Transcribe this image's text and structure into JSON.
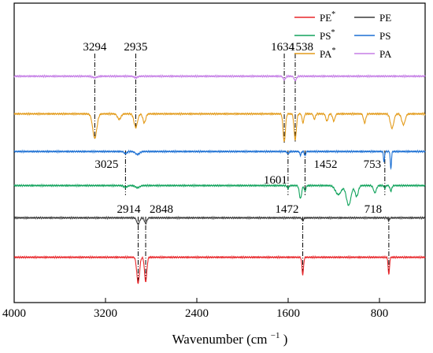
{
  "chart_data": {
    "type": "line",
    "xlabel": "Wavenumber",
    "xlabel_unit_base": "(cm",
    "xlabel_unit_exp": "−1",
    "xlabel_unit_close": ")",
    "xlim": [
      4000,
      400
    ],
    "x_ticks": [
      4000,
      3200,
      2400,
      1600,
      800
    ],
    "grid": false,
    "legend_position": "top-right",
    "series": [
      {
        "name": "PE",
        "star": true,
        "color": "#e8262a",
        "baseline": 1.0,
        "peaks": [
          [
            2914,
            0.72,
            12
          ],
          [
            2848,
            0.68,
            10
          ],
          [
            1472,
            0.48,
            7
          ],
          [
            718,
            0.48,
            6
          ]
        ]
      },
      {
        "name": "PE",
        "star": false,
        "color": "#3a3a3a",
        "baseline": 2.1,
        "peaks": [
          [
            2914,
            0.18,
            12
          ],
          [
            2848,
            0.16,
            10
          ],
          [
            1472,
            0.08,
            7
          ],
          [
            718,
            0.08,
            6
          ]
        ]
      },
      {
        "name": "PS",
        "star": true,
        "color": "#12a35d",
        "baseline": 3.0,
        "peaks": [
          [
            3025,
            0.05,
            15
          ],
          [
            2920,
            0.06,
            18
          ],
          [
            1601,
            0.08,
            8
          ],
          [
            1492,
            0.36,
            10
          ],
          [
            1452,
            0.15,
            8
          ],
          [
            1160,
            0.25,
            25
          ],
          [
            1070,
            0.55,
            20
          ],
          [
            1000,
            0.3,
            14
          ],
          [
            840,
            0.2,
            12
          ],
          [
            753,
            0.08,
            6
          ],
          [
            700,
            0.15,
            8
          ]
        ]
      },
      {
        "name": "PS",
        "star": false,
        "color": "#1b6fd3",
        "baseline": 3.95,
        "peaks": [
          [
            3025,
            0.06,
            12
          ],
          [
            2920,
            0.08,
            18
          ],
          [
            1601,
            0.06,
            8
          ],
          [
            1492,
            0.1,
            6
          ],
          [
            1452,
            0.12,
            6
          ],
          [
            760,
            0.28,
            5
          ],
          [
            700,
            0.48,
            5
          ]
        ]
      },
      {
        "name": "PA",
        "star": true,
        "color": "#e39b1a",
        "baseline": 5.0,
        "peaks": [
          [
            3294,
            0.68,
            18
          ],
          [
            3080,
            0.15,
            15
          ],
          [
            2935,
            0.38,
            15
          ],
          [
            2860,
            0.25,
            12
          ],
          [
            1634,
            0.78,
            10
          ],
          [
            1538,
            0.72,
            10
          ],
          [
            1470,
            0.25,
            8
          ],
          [
            1370,
            0.15,
            8
          ],
          [
            1260,
            0.2,
            10
          ],
          [
            1200,
            0.2,
            10
          ],
          [
            930,
            0.25,
            10
          ],
          [
            690,
            0.4,
            15
          ],
          [
            590,
            0.3,
            15
          ]
        ]
      },
      {
        "name": "PA",
        "star": false,
        "color": "#c57ee6",
        "baseline": 6.05,
        "peaks": [
          [
            3294,
            0.04,
            20
          ],
          [
            2935,
            0.04,
            15
          ],
          [
            1634,
            0.1,
            10
          ],
          [
            1538,
            0.12,
            10
          ]
        ]
      }
    ],
    "annotations": [
      {
        "text": "3294",
        "x": 3294,
        "row": "top"
      },
      {
        "text": "2935",
        "x": 2935,
        "row": "top"
      },
      {
        "text": "1634",
        "x": 1634,
        "row": "top"
      },
      {
        "text": "1538",
        "x": 1538,
        "row": "top"
      },
      {
        "text": "3025",
        "x": 3025,
        "row": "mid"
      },
      {
        "text": "1601",
        "x": 1601,
        "row": "mid"
      },
      {
        "text": "1452",
        "x": 1452,
        "row": "mid"
      },
      {
        "text": "753",
        "x": 753,
        "row": "mid"
      },
      {
        "text": "2914",
        "x": 2914,
        "row": "low"
      },
      {
        "text": "2848",
        "x": 2848,
        "row": "low"
      },
      {
        "text": "1472",
        "x": 1472,
        "row": "low"
      },
      {
        "text": "718",
        "x": 718,
        "row": "low"
      }
    ]
  }
}
